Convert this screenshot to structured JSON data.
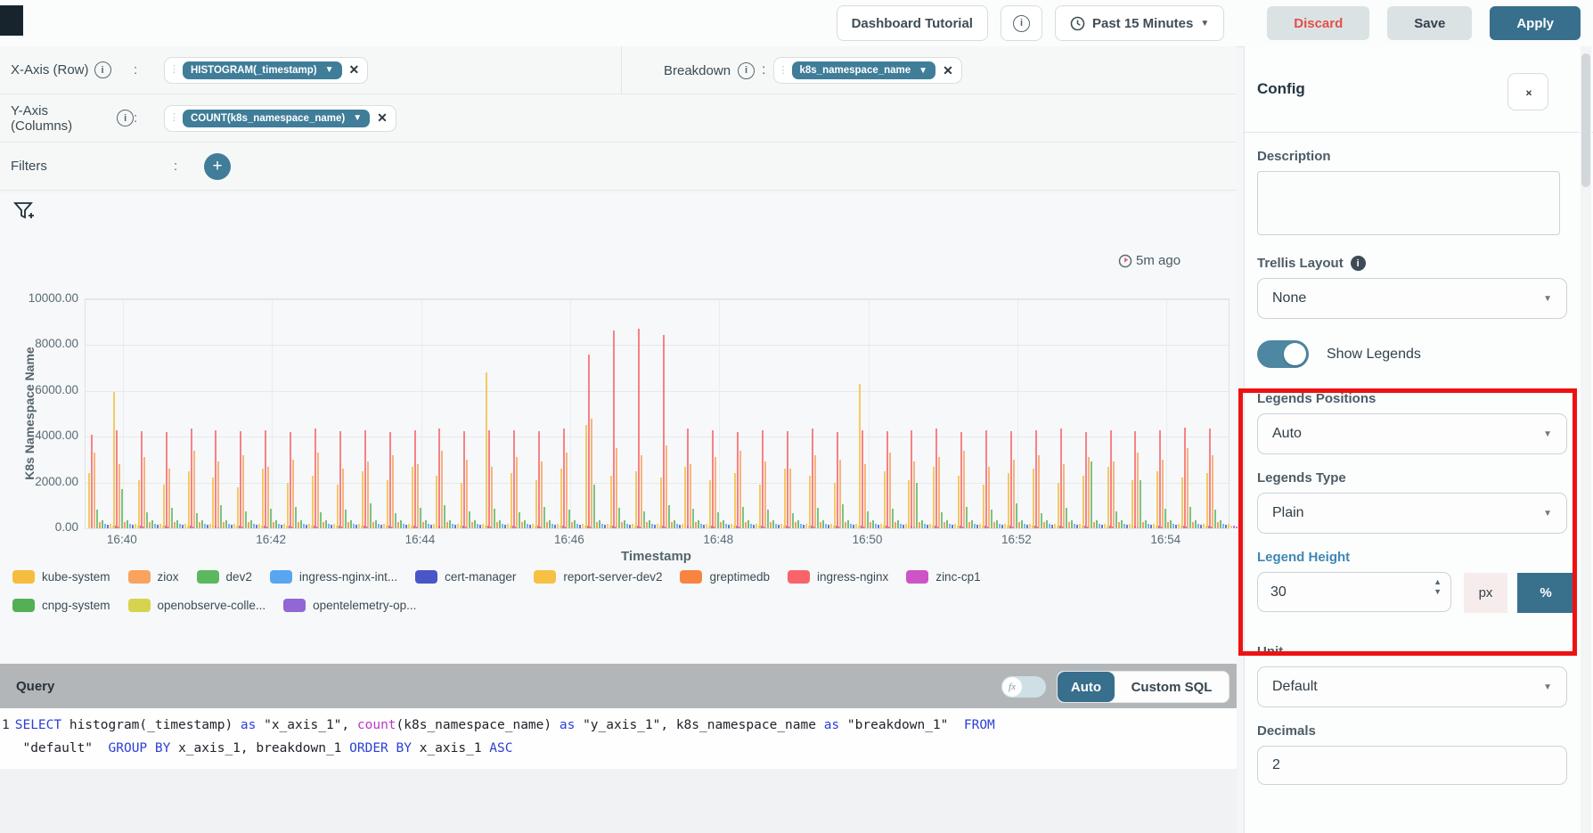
{
  "topbar": {
    "dashboard_title": "Dashboard Tutorial",
    "time_range": "Past 15 Minutes",
    "discard": "Discard",
    "save": "Save",
    "apply": "Apply"
  },
  "fields": {
    "x_axis_label": "X-Axis (Row)",
    "x_axis_chip": "HISTOGRAM(_timestamp)",
    "y_axis_label": "Y-Axis (Columns)",
    "y_axis_chip": "COUNT(k8s_namespace_name)",
    "breakdown_label": "Breakdown",
    "breakdown_chip": "k8s_namespace_name",
    "filters_label": "Filters",
    "colon": ":"
  },
  "chart": {
    "refreshed": "5m ago",
    "y_axis_title": "K8s Namespace Name",
    "x_axis_title": "Timestamp"
  },
  "chart_data": {
    "type": "bar",
    "title": "",
    "xlabel": "Timestamp",
    "ylabel": "K8s Namespace Name",
    "ylim": [
      0,
      10000
    ],
    "grid": true,
    "legend_position": "bottom",
    "y_ticks": [
      "10000.00",
      "8000.00",
      "6000.00",
      "4000.00",
      "2000.00",
      "0.00"
    ],
    "x_start": "16:39:40",
    "x_step_seconds": 20,
    "x_tick_labels": [
      "16:40",
      "16:42",
      "16:44",
      "16:46",
      "16:48",
      "16:50",
      "16:52",
      "16:54"
    ],
    "x_tick_buckets": [
      1,
      7,
      13,
      19,
      25,
      31,
      37,
      43
    ],
    "series": [
      {
        "name": "kube-system",
        "color": "#f5bd3d",
        "values": [
          2400,
          5950,
          2100,
          1900,
          2500,
          2200,
          1800,
          2600,
          2000,
          2300,
          1900,
          2500,
          2100,
          2700,
          2300,
          2000,
          6800,
          2400,
          2100,
          2600,
          4500,
          2300,
          2500,
          2200,
          2700,
          2100,
          2400,
          1900,
          2600,
          2300,
          2000,
          6300,
          2500,
          2100,
          2700,
          2300,
          1900,
          2400,
          2600,
          2000,
          2300,
          2700,
          2100,
          2500,
          2200,
          2400
        ]
      },
      {
        "name": "ingress-nginx",
        "color": "#f8646a",
        "values": [
          4100,
          4300,
          4250,
          4200,
          4350,
          4300,
          4250,
          4300,
          4200,
          4350,
          4250,
          4300,
          4200,
          4300,
          4350,
          4250,
          4300,
          4300,
          4250,
          4350,
          7600,
          8650,
          8700,
          8450,
          4350,
          4300,
          4200,
          4300,
          4250,
          4350,
          4200,
          4300,
          4250,
          4300,
          4350,
          4200,
          4300,
          4250,
          4300,
          4350,
          4200,
          4300,
          4250,
          4300,
          4400,
          4350
        ]
      },
      {
        "name": "ziox",
        "color": "#f9a35e",
        "values": [
          3300,
          2800,
          3100,
          2600,
          3400,
          2900,
          3200,
          2700,
          3000,
          3300,
          2600,
          2900,
          3200,
          2800,
          3400,
          3000,
          2700,
          3100,
          2900,
          3300,
          4800,
          3500,
          3200,
          3600,
          2800,
          3100,
          3400,
          2900,
          2600,
          3200,
          3000,
          2800,
          3300,
          2900,
          3100,
          3400,
          2700,
          3000,
          3200,
          2800,
          3100,
          2900,
          3300,
          3000,
          3500,
          3200
        ]
      },
      {
        "name": "dev2",
        "color": "#5cb85f",
        "values": [
          800,
          1700,
          700,
          900,
          650,
          1000,
          750,
          850,
          950,
          700,
          800,
          1100,
          650,
          900,
          1000,
          750,
          850,
          700,
          950,
          800,
          1900,
          900,
          750,
          1000,
          850,
          700,
          950,
          800,
          650,
          900,
          1050,
          750,
          850,
          2000,
          700,
          950,
          800,
          1100,
          650,
          900,
          2900,
          750,
          2100,
          850,
          950,
          800
        ]
      }
    ],
    "small_series": [
      {
        "name": "greptimedb",
        "color": "#f98442",
        "value": 260
      },
      {
        "name": "cnpg-system",
        "color": "#54b054",
        "value": 350
      },
      {
        "name": "ingress-nginx-internal",
        "color": "#58a6f0",
        "value": 200
      },
      {
        "name": "cert-manager",
        "color": "#4a55c7",
        "value": 150
      },
      {
        "name": "report-server-dev2",
        "color": "#f6c143",
        "value": 180
      },
      {
        "name": "openobserve-collector",
        "color": "#d6d44f",
        "value": 120
      },
      {
        "name": "opentelemetry-operator",
        "color": "#9266d4",
        "value": 100
      },
      {
        "name": "zinc-cp1",
        "color": "#ce53c6",
        "value": 90
      }
    ]
  },
  "legend": {
    "rows": [
      [
        {
          "label": "kube-system",
          "color": "#f5bd3d"
        },
        {
          "label": "ziox",
          "color": "#f9a35e"
        },
        {
          "label": "dev2",
          "color": "#5cb85f"
        },
        {
          "label": "ingress-nginx-int...",
          "color": "#58a6f0"
        },
        {
          "label": "cert-manager",
          "color": "#4a55c7"
        },
        {
          "label": "report-server-dev2",
          "color": "#f6c143"
        },
        {
          "label": "greptimedb",
          "color": "#f98442"
        },
        {
          "label": "ingress-nginx",
          "color": "#f8646a"
        },
        {
          "label": "zinc-cp1",
          "color": "#ce53c6"
        }
      ],
      [
        {
          "label": "cnpg-system",
          "color": "#54b054"
        },
        {
          "label": "openobserve-colle...",
          "color": "#d6d44f"
        },
        {
          "label": "opentelemetry-op...",
          "color": "#9266d4"
        }
      ]
    ]
  },
  "query": {
    "title": "Query",
    "fx": "fx",
    "auto": "Auto",
    "custom_sql": "Custom SQL",
    "line_number": "1",
    "sql_lines": [
      [
        {
          "t": "SELECT ",
          "c": "kw"
        },
        {
          "t": "histogram(_timestamp) ",
          "c": "id"
        },
        {
          "t": "as ",
          "c": "kw"
        },
        {
          "t": "\"x_axis_1\", ",
          "c": "id"
        },
        {
          "t": "count",
          "c": "fn"
        },
        {
          "t": "(k8s_namespace_name) ",
          "c": "id"
        },
        {
          "t": "as ",
          "c": "kw"
        },
        {
          "t": "\"y_axis_1\", ",
          "c": "id"
        },
        {
          "t": "k8s_namespace_name ",
          "c": "id"
        },
        {
          "t": "as ",
          "c": "kw"
        },
        {
          "t": "\"breakdown_1\"  ",
          "c": "id"
        },
        {
          "t": "FROM",
          "c": "kw"
        }
      ],
      [
        {
          "t": " \"default\"  ",
          "c": "id"
        },
        {
          "t": "GROUP BY ",
          "c": "kw"
        },
        {
          "t": "x_axis_1, breakdown_1 ",
          "c": "id"
        },
        {
          "t": "ORDER BY ",
          "c": "kw"
        },
        {
          "t": "x_axis_1 ",
          "c": "id"
        },
        {
          "t": "ASC",
          "c": "kw"
        }
      ]
    ]
  },
  "sidebar": {
    "title": "Config",
    "collapse_icon": "›‹",
    "description_label": "Description",
    "description_value": "",
    "trellis_label": "Trellis Layout",
    "trellis_value": "None",
    "show_legends_label": "Show Legends",
    "legends_positions_label": "Legends Positions",
    "legends_positions_value": "Auto",
    "legends_type_label": "Legends Type",
    "legends_type_value": "Plain",
    "legend_height_label": "Legend Height",
    "legend_height_value": "30",
    "unit_px": "px",
    "unit_pct": "%",
    "unit_label": "Unit",
    "unit_value": "Default",
    "decimals_label": "Decimals",
    "decimals_value": "2"
  },
  "colors": {
    "accent_teal": "#376f8d",
    "chip_teal": "#3f7d99",
    "annotation_red": "#ee1212",
    "discard_text": "#e2504c"
  }
}
